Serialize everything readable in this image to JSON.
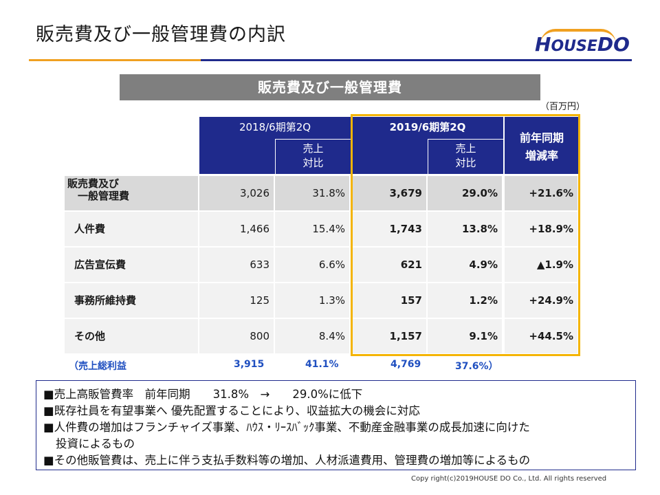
{
  "header": {
    "title": "販売費及び一般管理費の内訳",
    "logo_text": "HOUSEDO"
  },
  "section": {
    "title": "販売費及び一般管理費",
    "unit": "（百万円）"
  },
  "table": {
    "col_2018": "2018/6期第2Q",
    "col_2019": "2019/6期第2Q",
    "col_ratio": "売上\n対比",
    "col_yoy": "前年同期\n増減率",
    "rows": [
      {
        "label": "販売費及び\n　一般管理費",
        "v2018": "3,026",
        "r2018": "31.8%",
        "v2019": "3,679",
        "r2019": "29.0%",
        "yoy": "+21.6%"
      },
      {
        "label": "人件費",
        "v2018": "1,466",
        "r2018": "15.4%",
        "v2019": "1,743",
        "r2019": "13.8%",
        "yoy": "+18.9%"
      },
      {
        "label": "広告宣伝費",
        "v2018": "633",
        "r2018": "6.6%",
        "v2019": "621",
        "r2019": "4.9%",
        "yoy": "▲1.9%"
      },
      {
        "label": "事務所維持費",
        "v2018": "125",
        "r2018": "1.3%",
        "v2019": "157",
        "r2019": "1.2%",
        "yoy": "+24.9%"
      },
      {
        "label": "その他",
        "v2018": "800",
        "r2018": "8.4%",
        "v2019": "1,157",
        "r2019": "9.1%",
        "yoy": "+44.5%"
      }
    ],
    "gross_profit": {
      "label": "（売上総利益",
      "v2018": "3,915",
      "r2018": "41.1%",
      "v2019": "4,769",
      "r2019": "37.6%）"
    }
  },
  "notes": [
    "■売上高販管費率　前年同期　　31.8%　→　　29.0%に低下",
    "■既存社員を有望事業へ 優先配置することにより、収益拡大の機会に対応",
    "■人件費の増加はフランチャイズ事業、ﾊｳｽ・ﾘｰｽﾊﾞｯｸ事業、不動産金融事業の成長加速に向けた",
    "投資によるもの",
    "■その他販管費は、売上に伴う支払手数料等の増加、人材派遣費用、管理費の増加等によるもの"
  ],
  "footer": {
    "copyright": "Copy right(c)2019HOUSE DO Co., Ltd. All rights reserved"
  },
  "colors": {
    "navy": "#1f2a8c",
    "orange": "#f0a020",
    "highlight": "#f4b400",
    "gray_bar": "#7f7f7f",
    "gross_blue": "#1f4fc0"
  }
}
